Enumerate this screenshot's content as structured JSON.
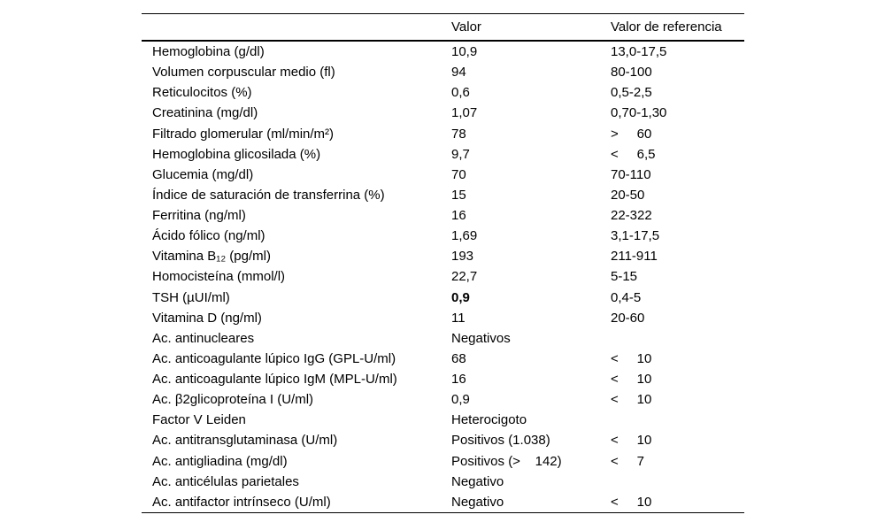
{
  "table": {
    "headers": {
      "param": "",
      "valor": "Valor",
      "ref": "Valor de referencia"
    },
    "rows": [
      {
        "param": "Hemoglobina (g/dl)",
        "valor": "10,9",
        "valor_bold": false,
        "ref": "13,0-17,5"
      },
      {
        "param": "Volumen corpuscular medio (fl)",
        "valor": "94",
        "valor_bold": false,
        "ref": "80-100"
      },
      {
        "param": "Reticulocitos (%)",
        "valor": "0,6",
        "valor_bold": false,
        "ref": "0,5-2,5"
      },
      {
        "param": "Creatinina (mg/dl)",
        "valor": "1,07",
        "valor_bold": false,
        "ref": "0,70-1,30"
      },
      {
        "param": "Filtrado glomerular (ml/min/m²)",
        "valor": "78",
        "valor_bold": false,
        "ref": ">     60"
      },
      {
        "param": "Hemoglobina glicosilada (%)",
        "valor": "9,7",
        "valor_bold": false,
        "ref": "<     6,5"
      },
      {
        "param": "Glucemia (mg/dl)",
        "valor": "70",
        "valor_bold": false,
        "ref": "70-110"
      },
      {
        "param": "Índice de saturación de transferrina (%)",
        "valor": "15",
        "valor_bold": false,
        "ref": "20-50"
      },
      {
        "param": "Ferritina (ng/ml)",
        "valor": "16",
        "valor_bold": false,
        "ref": "22-322"
      },
      {
        "param": "Ácido fólico (ng/ml)",
        "valor": "1,69",
        "valor_bold": false,
        "ref": "3,1-17,5"
      },
      {
        "param": "Vitamina B₁₂ (pg/ml)",
        "valor": "193",
        "valor_bold": false,
        "ref": "211-911"
      },
      {
        "param": "Homocisteína (mmol/l)",
        "valor": "22,7",
        "valor_bold": false,
        "ref": "5-15"
      },
      {
        "param": "TSH (µUI/ml)",
        "valor": "0,9",
        "valor_bold": true,
        "ref": "0,4-5"
      },
      {
        "param": "Vitamina D (ng/ml)",
        "valor": "11",
        "valor_bold": false,
        "ref": "20-60"
      },
      {
        "param": "Ac. antinucleares",
        "valor": "Negativos",
        "valor_bold": false,
        "ref": ""
      },
      {
        "param": "Ac. anticoagulante lúpico IgG (GPL-U/ml)",
        "valor": "68",
        "valor_bold": false,
        "ref": "<     10"
      },
      {
        "param": "Ac. anticoagulante lúpico IgM (MPL-U/ml)",
        "valor": "16",
        "valor_bold": false,
        "ref": "<     10"
      },
      {
        "param": "Ac. β2glicoproteína I (U/ml)",
        "valor": "0,9",
        "valor_bold": false,
        "ref": "<     10"
      },
      {
        "param": "Factor V Leiden",
        "valor": "Heterocigoto",
        "valor_bold": false,
        "ref": ""
      },
      {
        "param": "Ac. antitransglutaminasa (U/ml)",
        "valor": "Positivos (1.038)",
        "valor_bold": false,
        "ref": "<     10"
      },
      {
        "param": "Ac. antigliadina (mg/dl)",
        "valor": "Positivos (>    142)",
        "valor_bold": false,
        "ref": "<     7"
      },
      {
        "param": "Ac. anticélulas parietales",
        "valor": "Negativo",
        "valor_bold": false,
        "ref": ""
      },
      {
        "param": "Ac. antifactor intrínseco (U/ml)",
        "valor": "Negativo",
        "valor_bold": false,
        "ref": "<     10"
      }
    ]
  }
}
